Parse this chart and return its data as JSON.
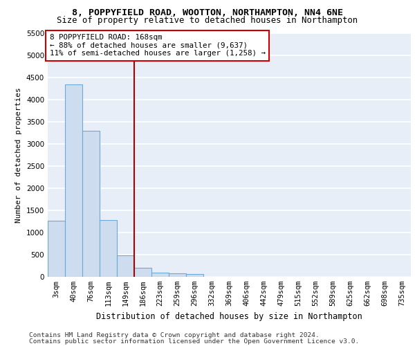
{
  "title_line1": "8, POPPYFIELD ROAD, WOOTTON, NORTHAMPTON, NN4 6NE",
  "title_line2": "Size of property relative to detached houses in Northampton",
  "xlabel": "Distribution of detached houses by size in Northampton",
  "ylabel": "Number of detached properties",
  "categories": [
    "3sqm",
    "40sqm",
    "76sqm",
    "113sqm",
    "149sqm",
    "186sqm",
    "223sqm",
    "259sqm",
    "296sqm",
    "332sqm",
    "369sqm",
    "406sqm",
    "442sqm",
    "479sqm",
    "515sqm",
    "552sqm",
    "589sqm",
    "625sqm",
    "662sqm",
    "698sqm",
    "735sqm"
  ],
  "values": [
    1260,
    4330,
    3290,
    1280,
    480,
    210,
    90,
    80,
    55,
    0,
    0,
    0,
    0,
    0,
    0,
    0,
    0,
    0,
    0,
    0,
    0
  ],
  "bar_color": "#cddcee",
  "bar_edge_color": "#6aaad4",
  "vline_x": 4.5,
  "vline_color": "#aa0000",
  "annotation_text": "8 POPPYFIELD ROAD: 168sqm\n← 88% of detached houses are smaller (9,637)\n11% of semi-detached houses are larger (1,258) →",
  "annotation_box_color": "#ffffff",
  "annotation_edge_color": "#cc0000",
  "ylim": [
    0,
    5500
  ],
  "yticks": [
    0,
    500,
    1000,
    1500,
    2000,
    2500,
    3000,
    3500,
    4000,
    4500,
    5000,
    5500
  ],
  "background_color": "#e8eef8",
  "grid_color": "#ffffff",
  "footer_line1": "Contains HM Land Registry data © Crown copyright and database right 2024.",
  "footer_line2": "Contains public sector information licensed under the Open Government Licence v3.0.",
  "title_fontsize": 9.5,
  "subtitle_fontsize": 8.8,
  "annotation_fontsize": 7.8,
  "axis_label_fontsize": 8.5,
  "tick_fontsize": 7.5,
  "ylabel_fontsize": 8,
  "footer_fontsize": 6.8
}
